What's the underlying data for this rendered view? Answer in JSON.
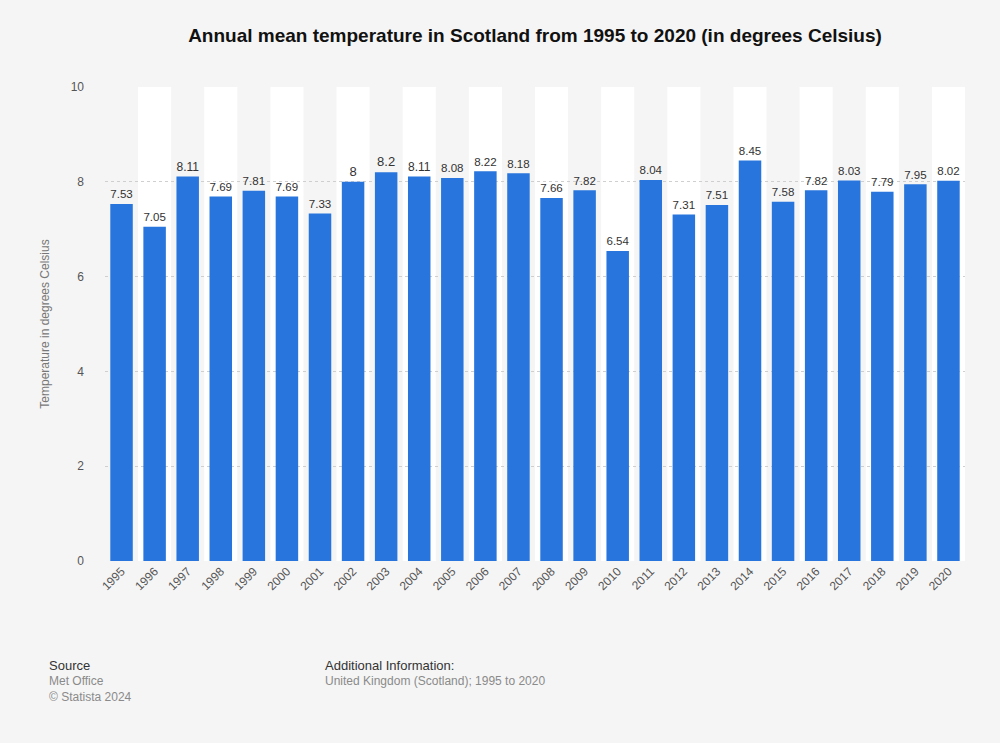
{
  "chart_data": {
    "type": "bar",
    "title": "Annual mean temperature in Scotland from 1995 to 2020 (in degrees Celsius)",
    "y_label": "Temperature in degrees Celsius",
    "categories": [
      "1995",
      "1996",
      "1997",
      "1998",
      "1999",
      "2000",
      "2001",
      "2002",
      "2003",
      "2004",
      "2005",
      "2006",
      "2007",
      "2008",
      "2009",
      "2010",
      "2011",
      "2012",
      "2013",
      "2014",
      "2015",
      "2016",
      "2017",
      "2018",
      "2019",
      "2020"
    ],
    "values": [
      7.53,
      7.05,
      8.11,
      7.69,
      7.81,
      7.69,
      7.33,
      8,
      8.2,
      8.11,
      8.08,
      8.22,
      8.18,
      7.66,
      7.82,
      6.54,
      8.04,
      7.31,
      7.51,
      8.45,
      7.58,
      7.82,
      8.03,
      7.79,
      7.95,
      8.02
    ],
    "color": "#2876dd",
    "ylim": [
      0,
      10
    ],
    "yticks": [
      0,
      2,
      4,
      6,
      8,
      10
    ],
    "grid": true,
    "data_labels": true,
    "source": {
      "heading": "Source",
      "lines": [
        "Met Office",
        "© Statista 2024"
      ]
    },
    "additional_info": {
      "heading": "Additional Information:",
      "lines": [
        "United Kingdom (Scotland); 1995 to 2020"
      ]
    }
  }
}
